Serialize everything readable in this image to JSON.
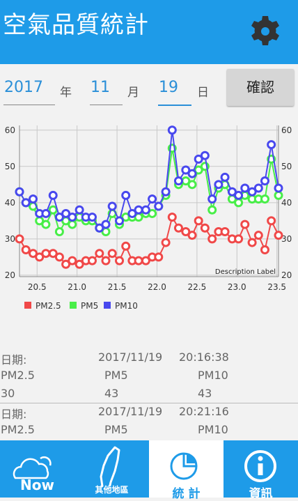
{
  "header": {
    "title": "空氣品質統計"
  },
  "date_picker": {
    "year": "2017",
    "year_unit": "年",
    "month": "11",
    "month_unit": "月",
    "day": "19",
    "day_unit": "日",
    "confirm": "確認"
  },
  "chart_data": {
    "type": "line",
    "x": [
      20.28,
      20.36,
      20.45,
      20.53,
      20.61,
      20.7,
      20.78,
      20.86,
      20.94,
      21.03,
      21.11,
      21.19,
      21.28,
      21.36,
      21.44,
      21.53,
      21.61,
      21.69,
      21.77,
      21.86,
      21.94,
      22.02,
      22.11,
      22.19,
      22.27,
      22.36,
      22.44,
      22.52,
      22.6,
      22.69,
      22.77,
      22.85,
      22.94,
      23.02,
      23.1,
      23.19,
      23.27,
      23.35,
      23.43,
      23.52
    ],
    "series": [
      {
        "name": "PM2.5",
        "color": "#f04848",
        "values": [
          30,
          27,
          26,
          25,
          26,
          26,
          25,
          23,
          24,
          23,
          24,
          24,
          26,
          24,
          26,
          24,
          28,
          24,
          24,
          24,
          25,
          25,
          29,
          36,
          33,
          32,
          31,
          35,
          33,
          30,
          32,
          32,
          30,
          30,
          34,
          29,
          31,
          27,
          35,
          31
        ]
      },
      {
        "name": "PM5",
        "color": "#48ee48",
        "values": [
          43,
          40,
          39,
          35,
          34,
          38,
          32,
          35,
          34,
          36,
          35,
          35,
          33,
          32,
          37,
          34,
          36,
          36,
          36,
          37,
          37,
          39,
          42,
          55,
          45,
          46,
          45,
          49,
          50,
          38,
          44,
          45,
          41,
          40,
          42,
          41,
          41,
          41,
          52,
          42
        ]
      },
      {
        "name": "PM10",
        "color": "#4848ee",
        "values": [
          43,
          40,
          41,
          37,
          37,
          42,
          36,
          37,
          36,
          38,
          36,
          36,
          33,
          34,
          39,
          35,
          42,
          37,
          38,
          38,
          41,
          39,
          43,
          60,
          46,
          49,
          48,
          52,
          53,
          41,
          45,
          47,
          43,
          42,
          44,
          43,
          44,
          46,
          56,
          44
        ]
      }
    ],
    "xlim": [
      20.28,
      23.52
    ],
    "xticks": [
      20.5,
      {
        "value": 21,
        "label": "21.0"
      },
      21.5,
      {
        "value": 22,
        "label": "22.0"
      },
      22.5,
      {
        "value": 23,
        "label": "23.0"
      },
      23.5
    ],
    "ylim": [
      19.6,
      61.3
    ],
    "yticks": [
      20,
      30,
      40,
      50,
      60
    ],
    "y2lim": [
      19.6,
      61.3
    ],
    "y2ticks": [
      20,
      30,
      40,
      50,
      60
    ],
    "grid": true,
    "description": "Description Label"
  },
  "records": [
    {
      "date_label": "日期:",
      "date": "2017/11/19",
      "time": "20:16:38",
      "labels": [
        "PM2.5",
        "PM5",
        "PM10"
      ],
      "values": [
        30,
        43,
        43
      ]
    },
    {
      "date_label": "日期:",
      "date": "2017/11/19",
      "time": "20:21:16",
      "labels": [
        "PM2.5",
        "PM5",
        "PM10"
      ]
    }
  ],
  "nav": [
    "Now",
    "其他地區",
    "統 計",
    "資訊"
  ]
}
